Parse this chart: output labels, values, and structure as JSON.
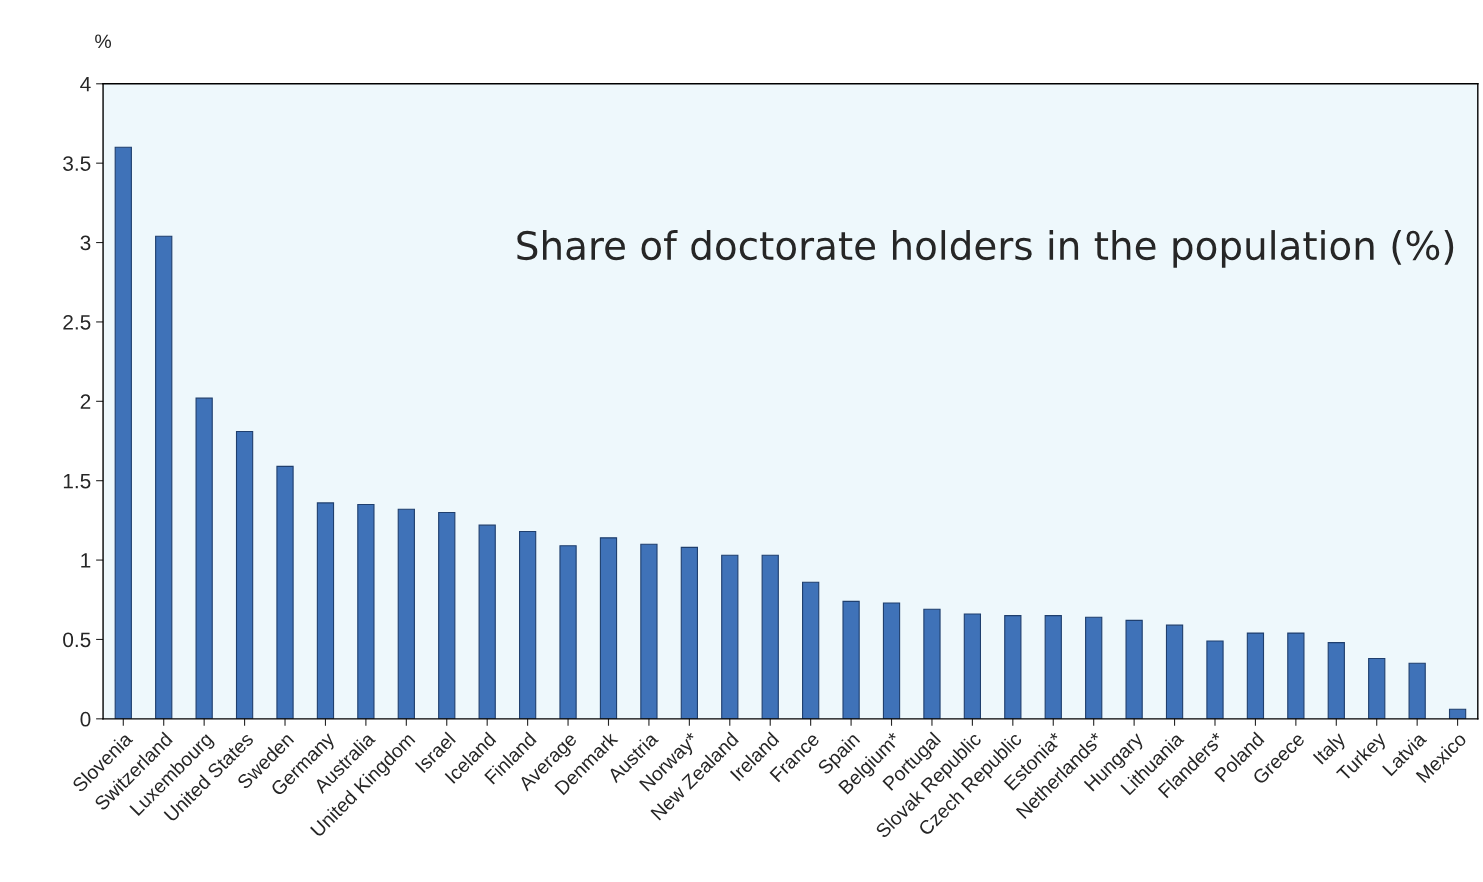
{
  "chart_data": {
    "type": "bar",
    "title": "Share of doctorate holders in the population (%)",
    "ylabel": "%",
    "categories": [
      "Slovenia",
      "Switzerland",
      "Luxembourg",
      "United States",
      "Sweden",
      "Germany",
      "Australia",
      "United Kingdom",
      "Israel",
      "Iceland",
      "Finland",
      "Average",
      "Denmark",
      "Austria",
      "Norway*",
      "New Zealand",
      "Ireland",
      "France",
      "Spain",
      "Belgium*",
      "Portugal",
      "Slovak Republic",
      "Czech Republic",
      "Estonia*",
      "Netherlands*",
      "Hungary",
      "Lithuania",
      "Flanders*",
      "Poland",
      "Greece",
      "Italy",
      "Turkey",
      "Latvia",
      "Mexico"
    ],
    "values": [
      3.6,
      3.04,
      2.02,
      1.81,
      1.59,
      1.36,
      1.35,
      1.32,
      1.3,
      1.22,
      1.18,
      1.09,
      1.14,
      1.1,
      1.08,
      1.03,
      1.03,
      0.86,
      0.74,
      0.73,
      0.69,
      0.66,
      0.65,
      0.65,
      0.64,
      0.62,
      0.59,
      0.49,
      0.54,
      0.54,
      0.48,
      0.38,
      0.35,
      0.06
    ],
    "color": "#3f72b8",
    "ylim": [
      0,
      4
    ],
    "yticks": [
      0,
      0.5,
      1,
      1.5,
      2,
      2.5,
      3,
      3.5,
      4
    ],
    "grid": false,
    "legend": false
  }
}
